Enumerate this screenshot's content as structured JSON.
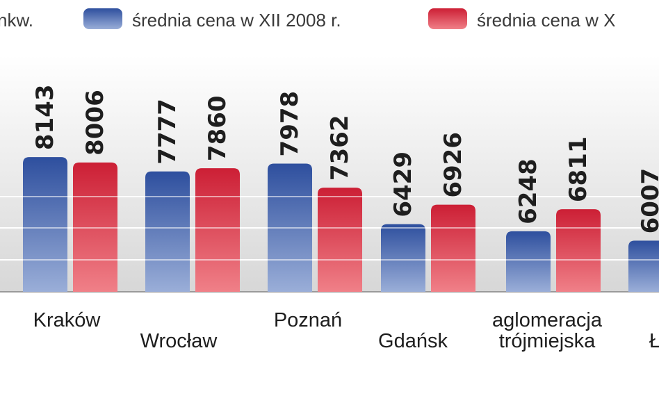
{
  "legend": {
    "unit_fragment": "nkw.",
    "items": [
      {
        "label": "średnia cena w XII 2008 r."
      },
      {
        "label": "średnia cena w X"
      }
    ]
  },
  "colors": {
    "series_a_top": "#2e4f9e",
    "series_a_bottom": "#9aaed8",
    "series_b_top": "#cc1f35",
    "series_b_bottom": "#f08088",
    "background_top": "#ffffff",
    "background_bottom": "#d7d7d7",
    "gridline": "#ffffff",
    "baseline": "#9a9a9a"
  },
  "chart_data": {
    "type": "bar",
    "categories": [
      "Kraków",
      "Wrocław",
      "Poznań",
      "Gdańsk",
      "aglomeracja trójmiejska",
      "Ł"
    ],
    "category_lines": [
      [
        "Kraków"
      ],
      [
        "Wrocław"
      ],
      [
        "Poznań"
      ],
      [
        "Gdańsk"
      ],
      [
        "aglomeracja",
        "trójmiejska"
      ],
      [
        "Ł"
      ]
    ],
    "series": [
      {
        "name": "średnia cena w XII 2008 r.",
        "values": [
          8143,
          7777,
          7978,
          6429,
          6248,
          6007
        ]
      },
      {
        "name": "średnia cena w X",
        "values": [
          8006,
          7860,
          7362,
          6926,
          6811,
          null
        ]
      }
    ],
    "value_labels": [
      [
        "8143",
        "7777",
        "7978",
        "6429",
        "6248",
        "6007"
      ],
      [
        "8006",
        "7860",
        "7362",
        "6926",
        "6811",
        ""
      ]
    ],
    "ylim": [
      4700,
      8300
    ],
    "grid": true,
    "legend_position": "top"
  }
}
